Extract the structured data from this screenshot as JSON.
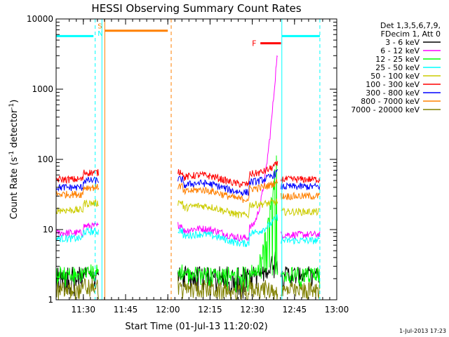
{
  "chart_data": {
    "type": "line",
    "title": "HESSI Observing Summary Count Rates",
    "xlabel": "Start Time (01-Jul-13 11:20:02)",
    "ylabel_main": "Count Rate (s",
    "ylabel_sup1": "-1",
    "ylabel_mid": " detector",
    "ylabel_sup2": "-1",
    "ylabel_end": ")",
    "yscale": "log",
    "ylim": [
      1,
      10000
    ],
    "xlim": [
      11.3389,
      13.0
    ],
    "x_ticks": [
      {
        "value": 11.5,
        "label": "11:30"
      },
      {
        "value": 11.75,
        "label": "11:45"
      },
      {
        "value": 12.0,
        "label": "12:00"
      },
      {
        "value": 12.25,
        "label": "12:15"
      },
      {
        "value": 12.5,
        "label": "12:30"
      },
      {
        "value": 12.75,
        "label": "12:45"
      },
      {
        "value": 13.0,
        "label": "13:00"
      }
    ],
    "y_ticks": [
      {
        "value": 1,
        "label": "1"
      },
      {
        "value": 10,
        "label": "10"
      },
      {
        "value": 100,
        "label": "100"
      },
      {
        "value": 1000,
        "label": "1000"
      },
      {
        "value": 10000,
        "label": "10000"
      }
    ],
    "legend_header": [
      "Det 1,3,5,6,7,9,",
      "FDecim 1, Att 0"
    ],
    "series": [
      {
        "name": "3 - 6 keV",
        "color": "#000000",
        "base": 1.6,
        "post": 2.2,
        "peak": 4.5,
        "floor": true
      },
      {
        "name": "6 - 12 keV",
        "color": "#ff00ff",
        "base": 9.0,
        "post": 8.5,
        "peak": 2800,
        "floor": false
      },
      {
        "name": "12 - 25 keV",
        "color": "#00ff00",
        "base": 2.0,
        "post": 2.0,
        "peak": 110,
        "floor": true
      },
      {
        "name": "25 - 50 keV",
        "color": "#00ffff",
        "base": 7.5,
        "post": 7.0,
        "peak": 15,
        "floor": false
      },
      {
        "name": "50 - 100 keV",
        "color": "#cccc00",
        "base": 19,
        "post": 18,
        "peak": 25,
        "floor": false
      },
      {
        "name": "100 - 300 keV",
        "color": "#ff0000",
        "base": 52,
        "post": 52,
        "peak": 85,
        "floor": false
      },
      {
        "name": "300 - 800 keV",
        "color": "#0000ff",
        "base": 40,
        "post": 41,
        "peak": 65,
        "floor": false
      },
      {
        "name": "800 - 7000 keV",
        "color": "#ff8000",
        "base": 32,
        "post": 30,
        "peak": 48,
        "floor": false
      },
      {
        "name": "7000 - 20000 keV",
        "color": "#808000",
        "base": 1.3,
        "post": 1.3,
        "peak": 1.3,
        "floor": true
      }
    ],
    "segments": [
      {
        "start": 11.3389,
        "end": 11.59,
        "level": "pre"
      },
      {
        "start": 12.06,
        "end": 12.65,
        "level": "mid"
      },
      {
        "start": 12.67,
        "end": 12.9,
        "level": "post"
      }
    ],
    "flare_peak_x": 12.645,
    "flag_bars": [
      {
        "label": "",
        "color": "#00ffff",
        "x0": 11.3389,
        "x1": 11.56,
        "value": 5700
      },
      {
        "label": "",
        "color": "#00ffff",
        "x0": 12.675,
        "x1": 12.9,
        "value": 5700
      },
      {
        "label": "",
        "color": "#ff8000",
        "x0": 11.627,
        "x1": 12.0,
        "value": 6800
      },
      {
        "label": "F",
        "color": "#ff0000",
        "x0": 12.548,
        "x1": 12.67,
        "value": 4500
      }
    ],
    "saa_markers": [
      {
        "label": "S",
        "color": "#ff8000",
        "x": 11.593,
        "value": 8000
      },
      {
        "label": "N",
        "color": "#00ffff",
        "x": 11.593,
        "value": 6300
      }
    ],
    "vertical_lines": [
      {
        "x": 11.3389,
        "color": "#00ffff",
        "style": "solid"
      },
      {
        "x": 11.57,
        "color": "#00ffff",
        "style": "dashed"
      },
      {
        "x": 11.61,
        "color": "#00ffff",
        "style": "solid"
      },
      {
        "x": 11.627,
        "color": "#ff8000",
        "style": "solid"
      },
      {
        "x": 12.02,
        "color": "#ff8000",
        "style": "dashed"
      },
      {
        "x": 12.675,
        "color": "#00ffff",
        "style": "solid"
      },
      {
        "x": 12.9,
        "color": "#00ffff",
        "style": "dashed"
      }
    ],
    "grid": false,
    "legend_position": "right"
  },
  "footer_date": "1-Jul-2013 17:23"
}
